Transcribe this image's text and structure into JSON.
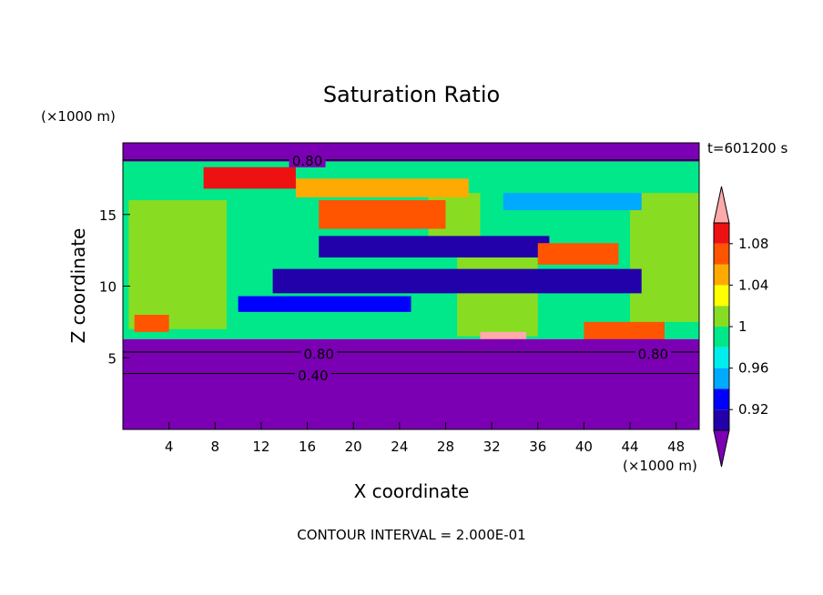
{
  "chart_data": {
    "type": "heatmap",
    "title": "Saturation Ratio",
    "xlabel": "X coordinate",
    "ylabel": "Z coordinate",
    "x_unit": "(×1000 m)",
    "y_unit": "(×1000 m)",
    "time_label": "t=601200 s",
    "footer": "CONTOUR INTERVAL = 2.000E-01",
    "xlim": [
      0,
      50
    ],
    "ylim": [
      0,
      20
    ],
    "x_ticks": [
      {
        "value": 4,
        "label": "4"
      },
      {
        "value": 8,
        "label": "8"
      },
      {
        "value": 12,
        "label": "12"
      },
      {
        "value": 16,
        "label": "16"
      },
      {
        "value": 20,
        "label": "20"
      },
      {
        "value": 24,
        "label": "24"
      },
      {
        "value": 28,
        "label": "28"
      },
      {
        "value": 32,
        "label": "32"
      },
      {
        "value": 36,
        "label": "36"
      },
      {
        "value": 40,
        "label": "40"
      },
      {
        "value": 44,
        "label": "44"
      },
      {
        "value": 48,
        "label": "48"
      }
    ],
    "y_ticks": [
      {
        "value": 5,
        "label": "5"
      },
      {
        "value": 10,
        "label": "10"
      },
      {
        "value": 15,
        "label": "15"
      }
    ],
    "colorbar": {
      "levels": [
        0.9,
        0.92,
        0.94,
        0.96,
        0.98,
        1.0,
        1.02,
        1.04,
        1.06,
        1.08,
        1.1
      ],
      "colors": [
        "#7b00b4",
        "#2200aa",
        "#0000ff",
        "#00aaff",
        "#00eeee",
        "#00e88a",
        "#88dd22",
        "#ffff00",
        "#ffaa00",
        "#ff5500",
        "#ee1111",
        "#ffaaaa"
      ],
      "tick_labels": [
        {
          "value": 0.92,
          "label": "0.92"
        },
        {
          "value": 0.96,
          "label": "0.96"
        },
        {
          "value": 1.0,
          "label": "1"
        },
        {
          "value": 1.04,
          "label": "1.04"
        },
        {
          "value": 1.08,
          "label": "1.08"
        }
      ]
    },
    "bands": [
      {
        "z0": 0,
        "z1": 6.3,
        "value": 0.85
      },
      {
        "z0": 18.7,
        "z1": 20,
        "value": 0.85
      }
    ],
    "regions": [
      {
        "x0": 0,
        "x1": 50,
        "z0": 6.3,
        "z1": 18.7,
        "value": 0.99
      },
      {
        "x0": 0.5,
        "x1": 9,
        "z0": 7,
        "z1": 16,
        "value": 1.0
      },
      {
        "x0": 29,
        "x1": 36,
        "z0": 6.5,
        "z1": 12,
        "value": 1.0
      },
      {
        "x0": 44,
        "x1": 50,
        "z0": 7.5,
        "z1": 16.5,
        "value": 1.0
      },
      {
        "x0": 26.5,
        "x1": 31,
        "z0": 12.5,
        "z1": 16.5,
        "value": 1.0
      },
      {
        "x0": 13,
        "x1": 45,
        "z0": 9.5,
        "z1": 11.2,
        "value": 0.91
      },
      {
        "x0": 17,
        "x1": 37,
        "z0": 12,
        "z1": 13.5,
        "value": 0.91
      },
      {
        "x0": 10,
        "x1": 25,
        "z0": 8.2,
        "z1": 9.3,
        "value": 0.93
      },
      {
        "x0": 33,
        "x1": 45,
        "z0": 15.3,
        "z1": 16.5,
        "value": 0.95
      },
      {
        "x0": 15,
        "x1": 30,
        "z0": 16.2,
        "z1": 17.5,
        "value": 1.04
      },
      {
        "x0": 7,
        "x1": 15,
        "z0": 16.8,
        "z1": 18.3,
        "value": 1.08
      },
      {
        "x0": 17,
        "x1": 28,
        "z0": 14,
        "z1": 16,
        "value": 1.06
      },
      {
        "x0": 36,
        "x1": 43,
        "z0": 11.5,
        "z1": 13,
        "value": 1.06
      },
      {
        "x0": 31,
        "x1": 35,
        "z0": 5.8,
        "z1": 6.8,
        "value": 1.1
      },
      {
        "x0": 1,
        "x1": 4,
        "z0": 6.8,
        "z1": 8,
        "value": 1.06
      },
      {
        "x0": 40,
        "x1": 47,
        "z0": 6.2,
        "z1": 7.5,
        "value": 1.06
      }
    ],
    "contour_labels": [
      {
        "x": 16,
        "z": 18.8,
        "label": "0.80"
      },
      {
        "x": 17,
        "z": 5.3,
        "label": "0.80"
      },
      {
        "x": 16.5,
        "z": 3.8,
        "label": "0.40"
      },
      {
        "x": 46,
        "z": 5.3,
        "label": "0.80"
      }
    ]
  }
}
